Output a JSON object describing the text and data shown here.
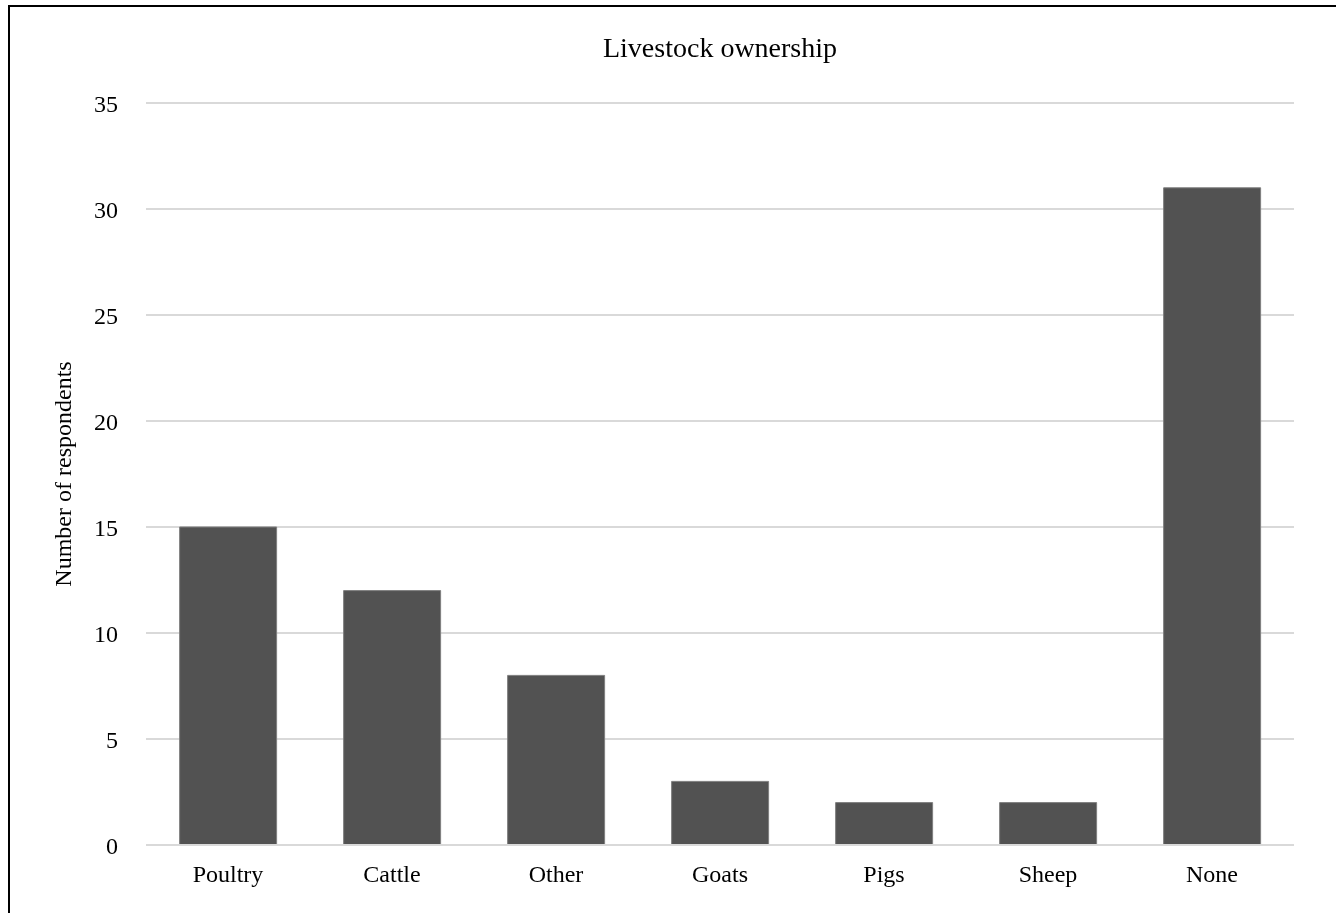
{
  "chart_data": {
    "type": "bar",
    "title": "Livestock ownership",
    "ylabel": "Number of respondents",
    "categories": [
      "Poultry",
      "Cattle",
      "Other",
      "Goats",
      "Pigs",
      "Sheep",
      "None"
    ],
    "values": [
      15,
      12,
      8,
      3,
      2,
      2,
      31
    ],
    "color": "#525252",
    "ylim": [
      0,
      35
    ],
    "yticks": [
      0,
      5,
      10,
      15,
      20,
      25,
      30,
      35
    ],
    "grid": "y"
  }
}
